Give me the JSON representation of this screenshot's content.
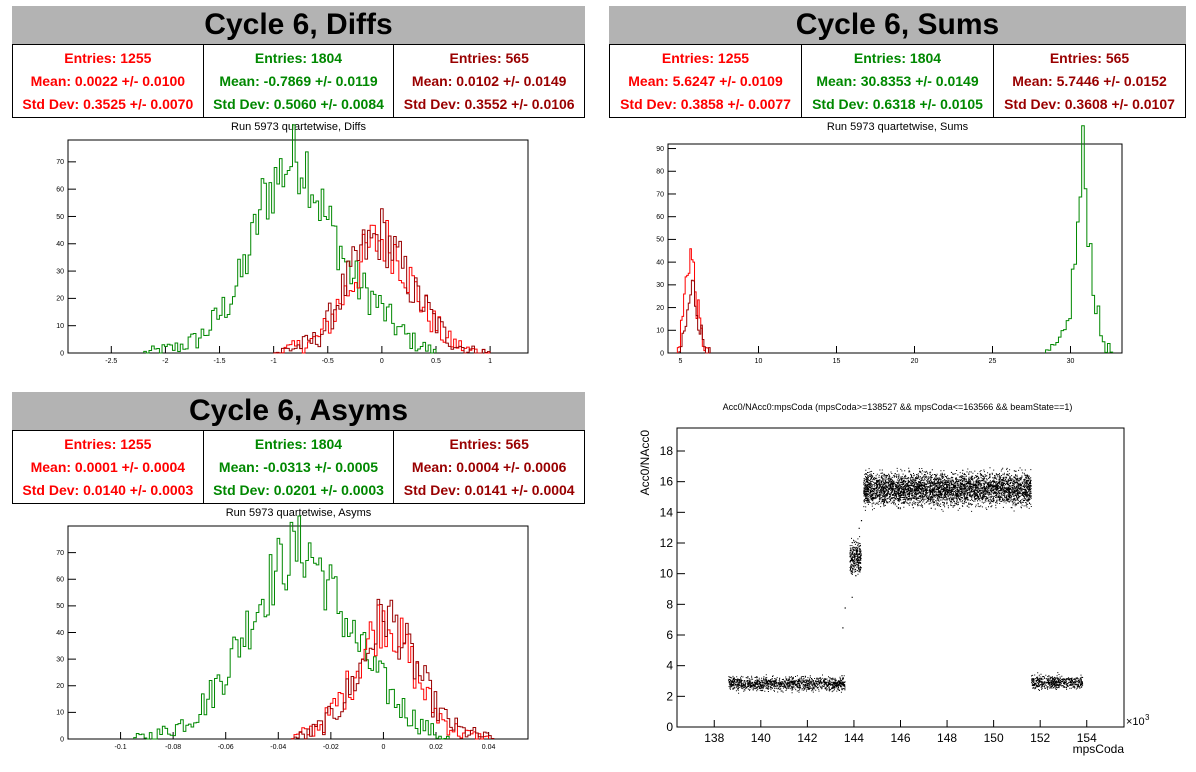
{
  "colors": {
    "c1": "#ff0000",
    "c2": "#008800",
    "c3": "#990000",
    "title_bg": "#b3b3b3"
  },
  "chart_data": [
    {
      "type": "histogram",
      "title": "Cycle 6, Diffs",
      "subtitle": "Run 5973 quartetwise, Diffs",
      "stats": [
        {
          "entries": "Entries: 1255",
          "mean": "Mean: 0.0022 +/- 0.0100",
          "std": "Std Dev: 0.3525 +/- 0.0070"
        },
        {
          "entries": "Entries: 1804",
          "mean": "Mean: -0.7869 +/- 0.0119",
          "std": "Std Dev: 0.5060 +/- 0.0084"
        },
        {
          "entries": "Entries: 565",
          "mean": "Mean: 0.0102 +/- 0.0149",
          "std": "Std Dev: 0.3552 +/- 0.0106"
        }
      ],
      "xlim": [
        -2.9,
        1.35
      ],
      "ylim": [
        0,
        78
      ],
      "xticks": [
        -2.5,
        -2,
        -1.5,
        -1,
        -0.5,
        0,
        0.5,
        1
      ],
      "xtick_labels": [
        "-2.5",
        "-2",
        "-1.5",
        "-1",
        "-0.5",
        "0",
        "0.5",
        "1"
      ],
      "yticks": [
        0,
        10,
        20,
        30,
        40,
        50,
        60,
        70
      ],
      "ytick_labels": [
        "0",
        "10",
        "20",
        "30",
        "40",
        "50",
        "60",
        "70"
      ],
      "series": [
        {
          "color": "#008800",
          "points": [
            [
              -2.2,
              0
            ],
            [
              -1.9,
              2
            ],
            [
              -1.7,
              5
            ],
            [
              -1.6,
              9
            ],
            [
              -1.5,
              14
            ],
            [
              -1.4,
              20
            ],
            [
              -1.3,
              28
            ],
            [
              -1.2,
              40
            ],
            [
              -1.1,
              56
            ],
            [
              -1.0,
              62
            ],
            [
              -0.9,
              68
            ],
            [
              -0.8,
              72
            ],
            [
              -0.7,
              70
            ],
            [
              -0.6,
              58
            ],
            [
              -0.5,
              48
            ],
            [
              -0.4,
              40
            ],
            [
              -0.3,
              30
            ],
            [
              -0.2,
              24
            ],
            [
              -0.1,
              21
            ],
            [
              0.0,
              16
            ],
            [
              0.1,
              11
            ],
            [
              0.2,
              7
            ],
            [
              0.3,
              4
            ],
            [
              0.4,
              2
            ],
            [
              0.5,
              0
            ]
          ]
        },
        {
          "color": "#ff0000",
          "points": [
            [
              -1.0,
              0
            ],
            [
              -0.8,
              2
            ],
            [
              -0.6,
              5
            ],
            [
              -0.5,
              10
            ],
            [
              -0.4,
              18
            ],
            [
              -0.3,
              24
            ],
            [
              -0.2,
              32
            ],
            [
              -0.1,
              40
            ],
            [
              0.0,
              42
            ],
            [
              0.1,
              39
            ],
            [
              0.2,
              32
            ],
            [
              0.3,
              24
            ],
            [
              0.4,
              16
            ],
            [
              0.5,
              10
            ],
            [
              0.6,
              5
            ],
            [
              0.7,
              3
            ],
            [
              0.8,
              1
            ],
            [
              1.0,
              0
            ]
          ]
        },
        {
          "color": "#990000",
          "points": [
            [
              -1.0,
              0
            ],
            [
              -0.8,
              2
            ],
            [
              -0.6,
              5
            ],
            [
              -0.5,
              11
            ],
            [
              -0.4,
              20
            ],
            [
              -0.3,
              27
            ],
            [
              -0.2,
              36
            ],
            [
              -0.1,
              40
            ],
            [
              0.0,
              44
            ],
            [
              0.1,
              38
            ],
            [
              0.2,
              30
            ],
            [
              0.3,
              22
            ],
            [
              0.4,
              17
            ],
            [
              0.5,
              11
            ],
            [
              0.6,
              6
            ],
            [
              0.7,
              3
            ],
            [
              0.8,
              1
            ],
            [
              1.0,
              0
            ]
          ]
        }
      ]
    },
    {
      "type": "histogram",
      "title": "Cycle 6, Sums",
      "subtitle": "Run 5973 quartetwise, Sums",
      "stats": [
        {
          "entries": "Entries: 1255",
          "mean": "Mean: 5.6247 +/- 0.0109",
          "std": "Std Dev: 0.3858 +/- 0.0077"
        },
        {
          "entries": "Entries: 1804",
          "mean": "Mean: 30.8353 +/- 0.0149",
          "std": "Std Dev: 0.6318 +/- 0.0105"
        },
        {
          "entries": "Entries: 565",
          "mean": "Mean: 5.7446 +/- 0.0152",
          "std": "Std Dev: 0.3608 +/- 0.0107"
        }
      ],
      "xlim": [
        4.2,
        33.3
      ],
      "ylim": [
        0,
        92
      ],
      "xticks": [
        5,
        10,
        15,
        20,
        25,
        30
      ],
      "xtick_labels": [
        "5",
        "10",
        "15",
        "20",
        "25",
        "30"
      ],
      "yticks": [
        0,
        10,
        20,
        30,
        40,
        50,
        60,
        70,
        80,
        90
      ],
      "ytick_labels": [
        "0",
        "10",
        "20",
        "30",
        "40",
        "50",
        "60",
        "70",
        "80",
        "90"
      ],
      "series": [
        {
          "color": "#ff0000",
          "points": [
            [
              4.8,
              0
            ],
            [
              5.0,
              8
            ],
            [
              5.2,
              20
            ],
            [
              5.4,
              35
            ],
            [
              5.6,
              46
            ],
            [
              5.8,
              38
            ],
            [
              6.0,
              25
            ],
            [
              6.2,
              14
            ],
            [
              6.4,
              6
            ],
            [
              6.6,
              2
            ],
            [
              6.8,
              0
            ]
          ]
        },
        {
          "color": "#990000",
          "points": [
            [
              4.9,
              0
            ],
            [
              5.2,
              6
            ],
            [
              5.4,
              14
            ],
            [
              5.6,
              24
            ],
            [
              5.8,
              30
            ],
            [
              6.0,
              22
            ],
            [
              6.2,
              14
            ],
            [
              6.4,
              7
            ],
            [
              6.6,
              3
            ],
            [
              6.9,
              0
            ]
          ]
        },
        {
          "color": "#008800",
          "points": [
            [
              28.4,
              0
            ],
            [
              29.0,
              2
            ],
            [
              29.5,
              6
            ],
            [
              29.8,
              12
            ],
            [
              30.0,
              22
            ],
            [
              30.2,
              36
            ],
            [
              30.4,
              48
            ],
            [
              30.6,
              65
            ],
            [
              30.8,
              88
            ],
            [
              31.0,
              70
            ],
            [
              31.2,
              52
            ],
            [
              31.4,
              36
            ],
            [
              31.6,
              24
            ],
            [
              31.8,
              14
            ],
            [
              32.0,
              7
            ],
            [
              32.3,
              3
            ],
            [
              32.7,
              0
            ]
          ]
        }
      ]
    },
    {
      "type": "histogram",
      "title": "Cycle 6, Asyms",
      "subtitle": "Run 5973 quartetwise, Asyms",
      "stats": [
        {
          "entries": "Entries: 1255",
          "mean": "Mean: 0.0001 +/- 0.0004",
          "std": "Std Dev: 0.0140 +/- 0.0003"
        },
        {
          "entries": "Entries: 1804",
          "mean": "Mean: -0.0313 +/- 0.0005",
          "std": "Std Dev: 0.0201 +/- 0.0003"
        },
        {
          "entries": "Entries: 565",
          "mean": "Mean: 0.0004 +/- 0.0006",
          "std": "Std Dev: 0.0141 +/- 0.0004"
        }
      ],
      "xlim": [
        -0.12,
        0.055
      ],
      "ylim": [
        0,
        80
      ],
      "xticks": [
        -0.1,
        -0.08,
        -0.06,
        -0.04,
        -0.02,
        0,
        0.02,
        0.04
      ],
      "xtick_labels": [
        "-0.1",
        "-0.08",
        "-0.06",
        "-0.04",
        "-0.02",
        "0",
        "0.02",
        "0.04"
      ],
      "yticks": [
        0,
        10,
        20,
        30,
        40,
        50,
        60,
        70
      ],
      "ytick_labels": [
        "0",
        "10",
        "20",
        "30",
        "40",
        "50",
        "60",
        "70"
      ],
      "series": [
        {
          "color": "#008800",
          "points": [
            [
              -0.095,
              0
            ],
            [
              -0.085,
              2
            ],
            [
              -0.078,
              5
            ],
            [
              -0.072,
              9
            ],
            [
              -0.066,
              16
            ],
            [
              -0.06,
              26
            ],
            [
              -0.055,
              36
            ],
            [
              -0.05,
              46
            ],
            [
              -0.045,
              56
            ],
            [
              -0.04,
              64
            ],
            [
              -0.035,
              70
            ],
            [
              -0.03,
              72
            ],
            [
              -0.025,
              66
            ],
            [
              -0.02,
              56
            ],
            [
              -0.015,
              46
            ],
            [
              -0.01,
              36
            ],
            [
              -0.005,
              28
            ],
            [
              0.0,
              21
            ],
            [
              0.005,
              14
            ],
            [
              0.01,
              9
            ],
            [
              0.015,
              5
            ],
            [
              0.02,
              2
            ],
            [
              0.025,
              0
            ]
          ]
        },
        {
          "color": "#ff0000",
          "points": [
            [
              -0.035,
              0
            ],
            [
              -0.028,
              3
            ],
            [
              -0.022,
              7
            ],
            [
              -0.017,
              14
            ],
            [
              -0.012,
              22
            ],
            [
              -0.008,
              32
            ],
            [
              -0.004,
              40
            ],
            [
              0.0,
              46
            ],
            [
              0.004,
              42
            ],
            [
              0.008,
              34
            ],
            [
              0.012,
              26
            ],
            [
              0.016,
              17
            ],
            [
              0.02,
              10
            ],
            [
              0.025,
              5
            ],
            [
              0.03,
              2
            ],
            [
              0.04,
              0
            ]
          ]
        },
        {
          "color": "#990000",
          "points": [
            [
              -0.035,
              0
            ],
            [
              -0.028,
              2
            ],
            [
              -0.022,
              6
            ],
            [
              -0.017,
              12
            ],
            [
              -0.012,
              20
            ],
            [
              -0.008,
              28
            ],
            [
              -0.004,
              38
            ],
            [
              0.0,
              48
            ],
            [
              0.004,
              44
            ],
            [
              0.008,
              36
            ],
            [
              0.012,
              28
            ],
            [
              0.016,
              20
            ],
            [
              0.02,
              12
            ],
            [
              0.025,
              6
            ],
            [
              0.03,
              3
            ],
            [
              0.042,
              0
            ]
          ]
        }
      ]
    },
    {
      "type": "scatter",
      "title": "Acc0/NAcc0:mpsCoda (mpsCoda>=138527 && mpsCoda<=163566 && beamState==1)",
      "xlabel": "mpsCoda",
      "ylabel": "Acc0/NAcc0",
      "x_multiplier": "×10",
      "x_multiplier_exp": "3",
      "xlim": [
        136.4,
        155.6
      ],
      "ylim": [
        0,
        19.5
      ],
      "xticks": [
        138,
        140,
        142,
        144,
        146,
        148,
        150,
        152,
        154
      ],
      "xtick_labels": [
        "138",
        "140",
        "142",
        "144",
        "146",
        "148",
        "150",
        "152",
        "154"
      ],
      "yticks": [
        0,
        2,
        4,
        6,
        8,
        10,
        12,
        14,
        16,
        18
      ],
      "ytick_labels": [
        "0",
        "2",
        "4",
        "6",
        "8",
        "10",
        "12",
        "14",
        "16",
        "18"
      ],
      "clusters": [
        {
          "x": [
            138.6,
            143.6
          ],
          "y": [
            2.2,
            3.5
          ]
        },
        {
          "x": [
            143.8,
            144.3
          ],
          "y": [
            9.6,
            12.6
          ]
        },
        {
          "x": [
            144.4,
            151.6
          ],
          "y": [
            14.0,
            17.1
          ]
        },
        {
          "x": [
            151.6,
            153.8
          ],
          "y": [
            2.3,
            3.6
          ]
        }
      ],
      "stray_points": [
        [
          143.5,
          6.5
        ],
        [
          143.6,
          7.8
        ],
        [
          143.9,
          8.5
        ],
        [
          144.2,
          13.0
        ],
        [
          144.3,
          13.5
        ]
      ]
    }
  ]
}
